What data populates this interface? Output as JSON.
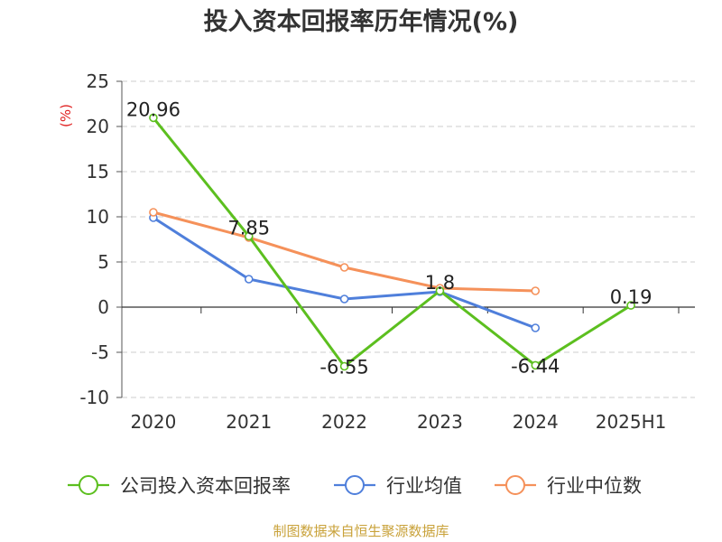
{
  "title": "投入资本回报率历年情况(%)",
  "source": "制图数据来自恒生聚源数据库",
  "chart_data": {
    "type": "line",
    "title": "投入资本回报率历年情况(%)",
    "ylabel": "(%)",
    "xlabel": "",
    "categories": [
      "2020",
      "2021",
      "2022",
      "2023",
      "2024",
      "2025H1"
    ],
    "ylim": [
      -10,
      25
    ],
    "yticks": [
      25,
      20,
      15,
      10,
      5,
      0,
      -5,
      -10
    ],
    "grid": true,
    "legend_position": "bottom",
    "series": [
      {
        "name": "公司投入资本回报率",
        "color": "#5cbf1f",
        "values": [
          20.96,
          7.85,
          -6.55,
          1.8,
          -6.44,
          0.19
        ],
        "labels": [
          "20.96",
          "7.85",
          "-6.55",
          "1.8",
          "-6.44",
          "0.19"
        ]
      },
      {
        "name": "行业均值",
        "color": "#4f7fdb",
        "values": [
          9.9,
          3.1,
          0.9,
          1.7,
          -2.3,
          null
        ]
      },
      {
        "name": "行业中位数",
        "color": "#f5915a",
        "values": [
          10.5,
          7.7,
          4.4,
          2.1,
          1.8,
          null
        ]
      }
    ]
  }
}
